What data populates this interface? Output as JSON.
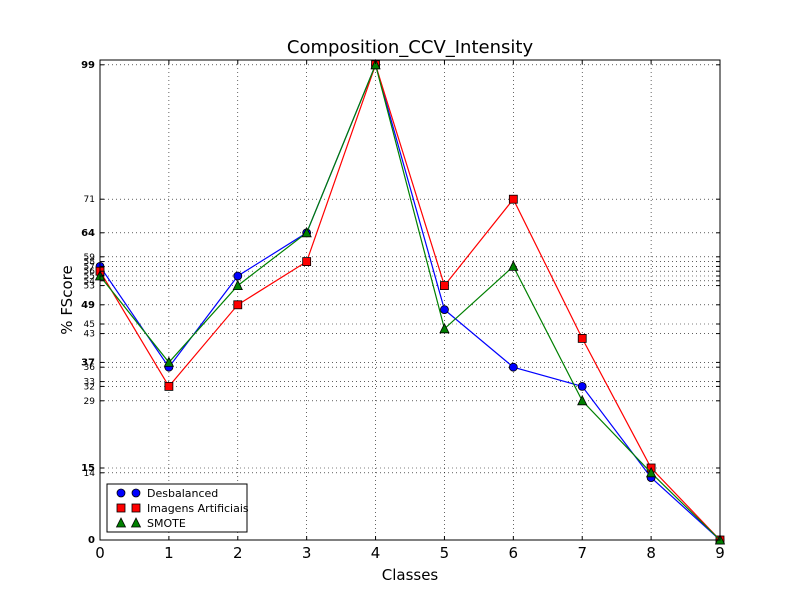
{
  "chart_data": {
    "type": "line",
    "title": "Composition_CCV_Intensity",
    "xlabel": "Classes",
    "ylabel": "% FScore",
    "x": [
      0,
      1,
      2,
      3,
      4,
      5,
      6,
      7,
      8,
      9
    ],
    "xlim": [
      0,
      9
    ],
    "ylim": [
      0,
      100
    ],
    "x_ticks": [
      "0",
      "1",
      "2",
      "3",
      "4",
      "5",
      "6",
      "7",
      "8",
      "9"
    ],
    "y_ticks": [
      0,
      14,
      15,
      29,
      32,
      33,
      36,
      37,
      43,
      45,
      49,
      53,
      54,
      55,
      56,
      57,
      58,
      59,
      64,
      71,
      99
    ],
    "y_tick_labels": [
      "0",
      "14",
      "15",
      "29",
      "32",
      "33",
      "36",
      "37",
      "43",
      "45",
      "49",
      "53",
      "54",
      "55",
      "56",
      "57",
      "58",
      "59",
      "64",
      "71",
      "99"
    ],
    "grid": true,
    "legend_position": "lower-left",
    "series": [
      {
        "name": "Desbalanced",
        "color": "#0000ff",
        "marker": "circle",
        "values": [
          57,
          36,
          55,
          64,
          99,
          48,
          36,
          32,
          13,
          0
        ]
      },
      {
        "name": "Imagens Artificiais",
        "color": "#ff0000",
        "marker": "square",
        "values": [
          56,
          32,
          49,
          58,
          99,
          53,
          71,
          42,
          15,
          0
        ]
      },
      {
        "name": "SMOTE",
        "color": "#008000",
        "marker": "triangle",
        "values": [
          55,
          37,
          53,
          64,
          99,
          44,
          57,
          29,
          14,
          0
        ]
      }
    ]
  }
}
